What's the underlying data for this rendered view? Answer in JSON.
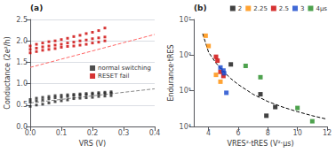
{
  "chart_data": [
    {
      "type": "scatter",
      "title": "(a)",
      "xlabel": "VRS (V)",
      "ylabel": "Conductance (2e²/h)",
      "xlim": [
        0,
        0.4
      ],
      "ylim": [
        0,
        2.5
      ],
      "xticks": [
        {
          "value": 0.0,
          "label": "0.0"
        },
        0.1,
        0.2,
        0.3,
        0.4
      ],
      "yticks": [
        {
          "value": 0.0,
          "label": "0.0"
        },
        0.5,
        {
          "value": 1.0,
          "label": "1.0"
        },
        1.5,
        {
          "value": 2.0,
          "label": "2.0"
        },
        2.5
      ],
      "grid": "y",
      "legend": "center right",
      "series": [
        {
          "name": "normal switching",
          "color": "#222222",
          "marker": "square",
          "x": [
            0.0,
            0.02,
            0.04,
            0.06,
            0.08,
            0.1,
            0.12,
            0.14,
            0.16,
            0.18,
            0.2,
            0.22,
            0.24,
            0.26,
            0.0,
            0.02,
            0.04,
            0.06,
            0.08,
            0.1,
            0.12,
            0.14,
            0.16,
            0.18,
            0.2,
            0.22,
            0.24,
            0.26,
            0.0,
            0.02,
            0.04,
            0.06,
            0.08,
            0.1,
            0.12,
            0.14,
            0.16,
            0.18,
            0.2,
            0.22,
            0.24,
            0.26
          ],
          "values": [
            0.47,
            0.5,
            0.52,
            0.55,
            0.58,
            0.6,
            0.62,
            0.65,
            0.66,
            0.67,
            0.68,
            0.7,
            0.71,
            0.72,
            0.57,
            0.6,
            0.62,
            0.65,
            0.67,
            0.68,
            0.7,
            0.72,
            0.73,
            0.74,
            0.75,
            0.76,
            0.77,
            0.78,
            0.63,
            0.66,
            0.68,
            0.7,
            0.72,
            0.73,
            0.74,
            0.75,
            0.76,
            0.77,
            0.78,
            0.79,
            0.8,
            0.81
          ]
        },
        {
          "name": "RESET fail",
          "color": "#cc0000",
          "marker": "square",
          "x": [
            0.0,
            0.02,
            0.04,
            0.06,
            0.08,
            0.1,
            0.12,
            0.14,
            0.16,
            0.18,
            0.2,
            0.22,
            0.24,
            0.0,
            0.02,
            0.04,
            0.06,
            0.08,
            0.1,
            0.12,
            0.14,
            0.16,
            0.18,
            0.2,
            0.22,
            0.24,
            0.0,
            0.02,
            0.04,
            0.06,
            0.08,
            0.1,
            0.12,
            0.14,
            0.16,
            0.18,
            0.2,
            0.22,
            0.24
          ],
          "values": [
            1.72,
            1.75,
            1.78,
            1.8,
            1.82,
            1.85,
            1.87,
            1.88,
            1.9,
            1.92,
            1.95,
            1.97,
            2.0,
            1.8,
            1.83,
            1.86,
            1.88,
            1.9,
            1.92,
            1.95,
            1.97,
            2.0,
            2.02,
            2.05,
            2.07,
            2.09,
            1.88,
            1.92,
            1.95,
            1.98,
            2.0,
            2.03,
            2.06,
            2.1,
            2.13,
            2.17,
            2.2,
            2.24,
            2.3
          ]
        },
        {
          "type": "line",
          "color": "#888888",
          "line_style": "dashed",
          "x": [
            0.0,
            0.4
          ],
          "values": [
            0.55,
            0.88
          ]
        },
        {
          "type": "line",
          "color": "#ff6666",
          "line_style": "dashed",
          "x": [
            0.0,
            0.4
          ],
          "values": [
            1.38,
            2.15
          ]
        }
      ]
    },
    {
      "type": "scatter",
      "title": "(b)",
      "xlabel": "VRES²·tRES (V²·μs)",
      "ylabel": "Endurance·tRES",
      "log": "y",
      "xlim": [
        3,
        12
      ],
      "ylim": [
        10000,
        10000000
      ],
      "xticks": [
        4,
        6,
        8,
        10,
        12
      ],
      "yticks": [
        {
          "value": 10000,
          "label": "10⁴"
        },
        {
          "value": 100000,
          "label": "10⁵"
        },
        {
          "value": 1000000,
          "label": "10⁶"
        },
        {
          "value": 10000000,
          "label": "10⁷"
        }
      ],
      "grid": false,
      "legend": "upper right",
      "series": [
        {
          "type": "line",
          "color": "#000000",
          "line_style": "dashed",
          "x": [
            3.6,
            4.0,
            4.5,
            5.0,
            5.5,
            6.0,
            7.0,
            8.0,
            9.0,
            10.0,
            11.0,
            12.0
          ],
          "values": [
            4000000,
            1200000,
            600000,
            350000,
            220000,
            150000,
            80000,
            50000,
            35000,
            26000,
            20000,
            16000
          ]
        },
        {
          "name": "2",
          "color": "#111111",
          "marker": "square",
          "x": [
            5.5,
            7.5,
            7.9,
            8.5
          ],
          "values": [
            550000,
            80000,
            20000,
            35000
          ]
        },
        {
          "name": "2.25",
          "color": "#ff8c00",
          "marker": "square",
          "x": [
            3.8,
            4.0,
            4.5,
            4.8
          ],
          "values": [
            3500000,
            1800000,
            280000,
            180000
          ]
        },
        {
          "name": "2.5",
          "color": "#cc0000",
          "marker": "square",
          "x": [
            4.5,
            4.6,
            4.8,
            5.0
          ],
          "values": [
            900000,
            700000,
            340000,
            260000
          ]
        },
        {
          "name": "3",
          "color": "#1144cc",
          "marker": "square",
          "x": [
            4.8,
            5.0,
            5.05,
            5.2
          ],
          "values": [
            450000,
            370000,
            310000,
            88000
          ]
        },
        {
          "name": "4μs",
          "color": "#228b22",
          "marker": "square",
          "x": [
            6.5,
            7.5,
            10.0,
            11.0
          ],
          "values": [
            500000,
            240000,
            33000,
            14000
          ]
        }
      ]
    }
  ]
}
